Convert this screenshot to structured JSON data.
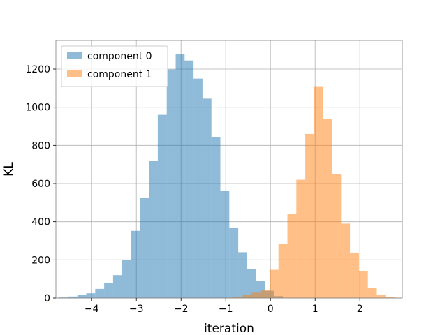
{
  "chart_data": {
    "type": "bar",
    "title": "",
    "xlabel": "iteration",
    "ylabel": "KL",
    "xlim": [
      -4.8,
      2.95
    ],
    "ylim": [
      0,
      1350
    ],
    "x_ticks": [
      -4,
      -3,
      -2,
      -1,
      0,
      1,
      2
    ],
    "x_tick_labels": [
      "−4",
      "−3",
      "−2",
      "−1",
      "0",
      "1",
      "2"
    ],
    "y_ticks": [
      0,
      200,
      400,
      600,
      800,
      1000,
      1200
    ],
    "y_tick_labels": [
      "0",
      "200",
      "400",
      "600",
      "800",
      "1000",
      "1200"
    ],
    "grid": true,
    "legend_position": "top-left",
    "series": [
      {
        "name": "component 0",
        "color": "#1f77b4",
        "opacity": 0.5,
        "bin_edges": [
          -4.72,
          -4.52,
          -4.32,
          -4.12,
          -3.92,
          -3.72,
          -3.52,
          -3.32,
          -3.12,
          -2.92,
          -2.72,
          -2.52,
          -2.32,
          -2.12,
          -1.92,
          -1.72,
          -1.52,
          -1.32,
          -1.12,
          -0.92,
          -0.72,
          -0.52,
          -0.32,
          -0.12,
          0.08,
          0.28
        ],
        "counts": [
          3,
          8,
          15,
          25,
          48,
          78,
          120,
          198,
          352,
          525,
          718,
          960,
          1198,
          1278,
          1245,
          1150,
          1045,
          845,
          560,
          368,
          240,
          150,
          88,
          38,
          10
        ]
      },
      {
        "name": "component 1",
        "color": "#ff7f0e",
        "opacity": 0.5,
        "bin_edges": [
          -1.02,
          -0.82,
          -0.62,
          -0.42,
          -0.22,
          -0.02,
          0.18,
          0.38,
          0.58,
          0.78,
          0.98,
          1.18,
          1.38,
          1.58,
          1.78,
          1.98,
          2.18,
          2.38,
          2.58,
          2.78
        ],
        "counts": [
          2,
          6,
          15,
          28,
          42,
          148,
          285,
          440,
          620,
          860,
          1110,
          940,
          650,
          390,
          238,
          142,
          52,
          18,
          5
        ]
      }
    ]
  }
}
